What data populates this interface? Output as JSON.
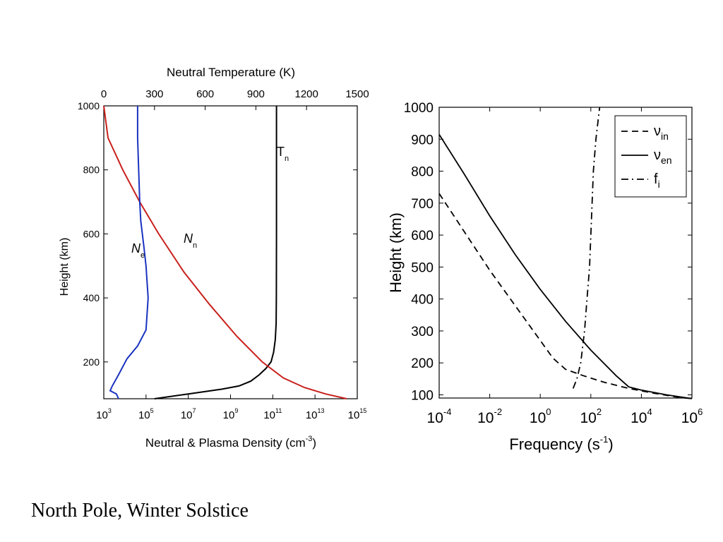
{
  "caption": "North Pole, Winter Solstice",
  "chart_data": [
    {
      "type": "line",
      "title": "",
      "ylabel": "Height (km)",
      "top_xlabel": "Neutral Temperature (K)",
      "bottom_xlabel": "Neutral & Plasma Density (cm",
      "bottom_xlabel_sup": "-3",
      "bottom_xlabel_end": ")",
      "ylim": [
        85,
        1000
      ],
      "yticks": [
        "200",
        "400",
        "600",
        "800",
        "1000"
      ],
      "ytick_values": [
        200,
        400,
        600,
        800,
        1000
      ],
      "top_xlim": [
        0,
        1500
      ],
      "top_xticks": [
        "0",
        "300",
        "600",
        "900",
        "1200",
        "1500"
      ],
      "top_xtick_values": [
        0,
        300,
        600,
        900,
        1200,
        1500
      ],
      "bottom_xlim_log10": [
        3,
        15
      ],
      "bottom_xticks": [
        {
          "base": "10",
          "exp": "3",
          "log": 3
        },
        {
          "base": "10",
          "exp": "5",
          "log": 5
        },
        {
          "base": "10",
          "exp": "7",
          "log": 7
        },
        {
          "base": "10",
          "exp": "9",
          "log": 9
        },
        {
          "base": "10",
          "exp": "11",
          "log": 11
        },
        {
          "base": "10",
          "exp": "13",
          "log": 13
        },
        {
          "base": "10",
          "exp": "15",
          "log": 15
        }
      ],
      "series": [
        {
          "name": "T",
          "sub": "n",
          "axis": "top",
          "color": "#000000",
          "x_unit": "K",
          "points": [
            [
              300,
              85
            ],
            [
              500,
              100
            ],
            [
              700,
              115
            ],
            [
              800,
              125
            ],
            [
              870,
              140
            ],
            [
              920,
              160
            ],
            [
              960,
              180
            ],
            [
              990,
              200
            ],
            [
              1005,
              230
            ],
            [
              1015,
              270
            ],
            [
              1020,
              320
            ],
            [
              1021,
              400
            ],
            [
              1022,
              600
            ],
            [
              1022,
              1000
            ]
          ]
        },
        {
          "name": "N",
          "sub": "n",
          "axis": "bottom",
          "color": "#c8201c",
          "x_log10": true,
          "points": [
            [
              14.5,
              85
            ],
            [
              13.5,
              100
            ],
            [
              12.5,
              120
            ],
            [
              11.5,
              150
            ],
            [
              10.5,
              200
            ],
            [
              9.3,
              280
            ],
            [
              8.0,
              380
            ],
            [
              6.8,
              480
            ],
            [
              5.6,
              600
            ],
            [
              4.7,
              700
            ],
            [
              3.9,
              800
            ],
            [
              3.2,
              900
            ],
            [
              3.0,
              1000
            ]
          ]
        },
        {
          "name": "N",
          "sub": "e",
          "axis": "bottom",
          "color": "#1a33c0",
          "x_log10": true,
          "points": [
            [
              3.7,
              85
            ],
            [
              3.6,
              100
            ],
            [
              3.3,
              110
            ],
            [
              3.4,
              125
            ],
            [
              3.7,
              160
            ],
            [
              4.1,
              210
            ],
            [
              4.6,
              250
            ],
            [
              5.0,
              300
            ],
            [
              5.1,
              400
            ],
            [
              5.0,
              500
            ],
            [
              4.9,
              560
            ],
            [
              4.75,
              640
            ],
            [
              4.7,
              700
            ],
            [
              4.65,
              800
            ],
            [
              4.6,
              900
            ],
            [
              4.6,
              1000
            ]
          ]
        }
      ],
      "annotations": [
        {
          "text": "T",
          "sub": "n",
          "color": "#000000"
        },
        {
          "text": "N",
          "sub": "n",
          "color": "#c8201c"
        },
        {
          "text": "N",
          "sub": "e",
          "color": "#1a33c0"
        }
      ]
    },
    {
      "type": "line",
      "title": "",
      "ylabel": "Height (km)",
      "xlabel": "Frequency (s",
      "xlabel_sup": "-1",
      "xlabel_end": ")",
      "x_log10": true,
      "xlim_log10": [
        -4,
        6
      ],
      "xticks": [
        {
          "base": "10",
          "exp": "-4",
          "log": -4
        },
        {
          "base": "10",
          "exp": "-2",
          "log": -2
        },
        {
          "base": "10",
          "exp": "0",
          "log": 0
        },
        {
          "base": "10",
          "exp": "2",
          "log": 2
        },
        {
          "base": "10",
          "exp": "4",
          "log": 4
        },
        {
          "base": "10",
          "exp": "6",
          "log": 6
        }
      ],
      "ylim": [
        90,
        1000
      ],
      "yticks": [
        "100",
        "200",
        "300",
        "400",
        "500",
        "600",
        "700",
        "800",
        "900",
        "1000"
      ],
      "ytick_values": [
        100,
        200,
        300,
        400,
        500,
        600,
        700,
        800,
        900,
        1000
      ],
      "legend_position": "top-right",
      "series": [
        {
          "name": "ν",
          "sub": "in",
          "dash": "dashed",
          "points": [
            [
              -4,
              730
            ],
            [
              -3,
              610
            ],
            [
              -2,
              490
            ],
            [
              -1,
              380
            ],
            [
              0,
              270
            ],
            [
              0.5,
              215
            ],
            [
              1,
              180
            ],
            [
              1.7,
              160
            ],
            [
              2.5,
              140
            ],
            [
              3.5,
              120
            ],
            [
              4.5,
              105
            ],
            [
              5.5,
              92
            ],
            [
              6,
              88
            ]
          ]
        },
        {
          "name": "ν",
          "sub": "en",
          "dash": "solid",
          "points": [
            [
              -4,
              915
            ],
            [
              -3,
              790
            ],
            [
              -2,
              660
            ],
            [
              -1,
              540
            ],
            [
              0,
              430
            ],
            [
              1,
              330
            ],
            [
              2,
              240
            ],
            [
              3,
              160
            ],
            [
              3.5,
              125
            ],
            [
              4,
              115
            ],
            [
              5,
              100
            ],
            [
              6,
              88
            ]
          ]
        },
        {
          "name": "f",
          "sub": "i",
          "dash": "dashdot",
          "points": [
            [
              1.3,
              120
            ],
            [
              1.45,
              150
            ],
            [
              1.6,
              200
            ],
            [
              1.75,
              300
            ],
            [
              1.85,
              400
            ],
            [
              1.95,
              500
            ],
            [
              2.0,
              600
            ],
            [
              2.05,
              700
            ],
            [
              2.1,
              800
            ],
            [
              2.2,
              900
            ],
            [
              2.35,
              1000
            ]
          ]
        }
      ]
    }
  ]
}
